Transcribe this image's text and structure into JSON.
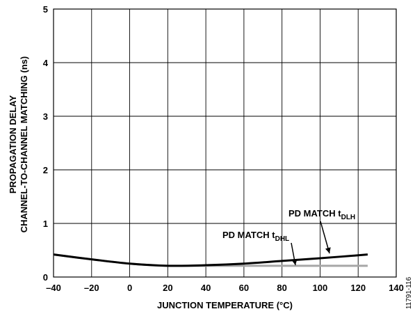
{
  "chart_data": {
    "type": "line",
    "title": "",
    "xlabel": "JUNCTION TEMPERATURE (°C)",
    "ylabel_lines": [
      "PROPAGATION DELAY",
      "CHANNEL-TO-CHANNEL MATCHING (ns)"
    ],
    "xlim": [
      -40,
      140
    ],
    "ylim": [
      0,
      5
    ],
    "xticks": [
      -40,
      -20,
      0,
      20,
      40,
      60,
      80,
      100,
      120,
      140
    ],
    "xtick_labels": [
      "–40",
      "–20",
      "0",
      "20",
      "40",
      "60",
      "80",
      "100",
      "120",
      "140"
    ],
    "yticks": [
      0,
      1,
      2,
      3,
      4,
      5
    ],
    "ytick_labels": [
      "0",
      "1",
      "2",
      "3",
      "4",
      "5"
    ],
    "grid": true,
    "series": [
      {
        "name": "PD MATCH tDLH",
        "label_main": "PD MATCH t",
        "label_sub": "DLH",
        "color": "#000000",
        "x": [
          -40,
          -20,
          0,
          20,
          40,
          60,
          80,
          100,
          125
        ],
        "y": [
          0.42,
          0.33,
          0.25,
          0.21,
          0.22,
          0.25,
          0.3,
          0.35,
          0.42
        ]
      },
      {
        "name": "PD MATCH tDHL",
        "label_main": "PD MATCH t",
        "label_sub": "DHL",
        "color": "#a6a6a6",
        "x": [
          -40,
          -20,
          0,
          20,
          40,
          60,
          80,
          100,
          125
        ],
        "y": [
          0.42,
          0.33,
          0.25,
          0.21,
          0.21,
          0.21,
          0.21,
          0.21,
          0.21
        ]
      }
    ],
    "figure_id": "11791-116"
  }
}
